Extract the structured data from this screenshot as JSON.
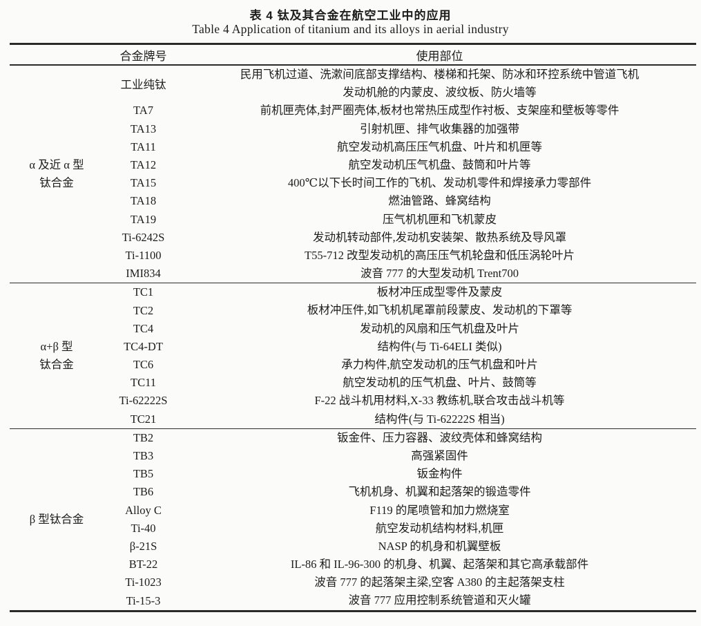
{
  "titles": {
    "cn": "表 4  钛及其合金在航空工业中的应用",
    "en": "Table 4  Application of titanium and its alloys in aerial industry"
  },
  "table": {
    "headers": {
      "alloy": "合金牌号",
      "usage": "使用部位"
    },
    "sections": [
      {
        "group": [
          "α 及近 α 型",
          "钛合金"
        ],
        "rows": [
          {
            "alloy": "工业纯钛",
            "usage": [
              "民用飞机过道、洗漱间底部支撑结构、楼梯和托架、防冰和环控系统中管道飞机",
              "发动机舱的内蒙皮、波纹板、防火墙等"
            ]
          },
          {
            "alloy": "TA7",
            "usage": [
              "前机匣壳体,封严圈壳体,板材也常热压成型作衬板、支架座和壁板等零件"
            ]
          },
          {
            "alloy": "TA13",
            "usage": [
              "引射机匣、排气收集器的加强带"
            ]
          },
          {
            "alloy": "TA11",
            "usage": [
              "航空发动机高压压气机盘、叶片和机匣等"
            ]
          },
          {
            "alloy": "TA12",
            "usage": [
              "航空发动机压气机盘、鼓筒和叶片等"
            ]
          },
          {
            "alloy": "TA15",
            "usage": [
              "400℃以下长时间工作的飞机、发动机零件和焊接承力零部件"
            ]
          },
          {
            "alloy": "TA18",
            "usage": [
              "燃油管路、蜂窝结构"
            ]
          },
          {
            "alloy": "TA19",
            "usage": [
              "压气机机匣和飞机蒙皮"
            ]
          },
          {
            "alloy": "Ti-6242S",
            "usage": [
              "发动机转动部件,发动机安装架、散热系统及导风罩"
            ]
          },
          {
            "alloy": "Ti-1100",
            "usage": [
              "T55-712 改型发动机的高压压气机轮盘和低压涡轮叶片"
            ]
          },
          {
            "alloy": "IMI834",
            "usage": [
              "波音 777 的大型发动机 Trent700"
            ]
          }
        ]
      },
      {
        "group": [
          "α+β 型",
          "钛合金"
        ],
        "rows": [
          {
            "alloy": "TC1",
            "usage": [
              "板材冲压成型零件及蒙皮"
            ]
          },
          {
            "alloy": "TC2",
            "usage": [
              "板材冲压件,如飞机机尾罩前段蒙皮、发动机的下罩等"
            ]
          },
          {
            "alloy": "TC4",
            "usage": [
              "发动机的风扇和压气机盘及叶片"
            ]
          },
          {
            "alloy": "TC4-DT",
            "usage": [
              "结构件(与 Ti-64ELI 类似)"
            ]
          },
          {
            "alloy": "TC6",
            "usage": [
              "承力构件,航空发动机的压气机盘和叶片"
            ]
          },
          {
            "alloy": "TC11",
            "usage": [
              "航空发动机的压气机盘、叶片、鼓筒等"
            ]
          },
          {
            "alloy": "Ti-62222S",
            "usage": [
              "F-22 战斗机用材料,X-33 教练机,联合攻击战斗机等"
            ]
          },
          {
            "alloy": "TC21",
            "usage": [
              "结构件(与 Ti-62222S 相当)"
            ]
          }
        ]
      },
      {
        "group": [
          "β 型钛合金"
        ],
        "rows": [
          {
            "alloy": "TB2",
            "usage": [
              "钣金件、压力容器、波纹壳体和蜂窝结构"
            ]
          },
          {
            "alloy": "TB3",
            "usage": [
              "高强紧固件"
            ]
          },
          {
            "alloy": "TB5",
            "usage": [
              "钣金构件"
            ]
          },
          {
            "alloy": "TB6",
            "usage": [
              "飞机机身、机翼和起落架的锻造零件"
            ]
          },
          {
            "alloy": "Alloy C",
            "usage": [
              "F119 的尾喷管和加力燃烧室"
            ]
          },
          {
            "alloy": "Ti-40",
            "usage": [
              "航空发动机结构材料,机匣"
            ]
          },
          {
            "alloy": "β-21S",
            "usage": [
              "NASP 的机身和机翼壁板"
            ]
          },
          {
            "alloy": "BT-22",
            "usage": [
              "IL-86 和 IL-96-300 的机身、机翼、起落架和其它高承载部件"
            ]
          },
          {
            "alloy": "Ti-1023",
            "usage": [
              "波音 777 的起落架主梁,空客 A380 的主起落架支柱"
            ]
          },
          {
            "alloy": "Ti-15-3",
            "usage": [
              "波音 777 应用控制系统管道和灭火罐"
            ]
          }
        ]
      }
    ]
  },
  "colors": {
    "text": "#1c1c1c",
    "rule": "#2a2a2a",
    "paper": "#fbfbfa"
  }
}
